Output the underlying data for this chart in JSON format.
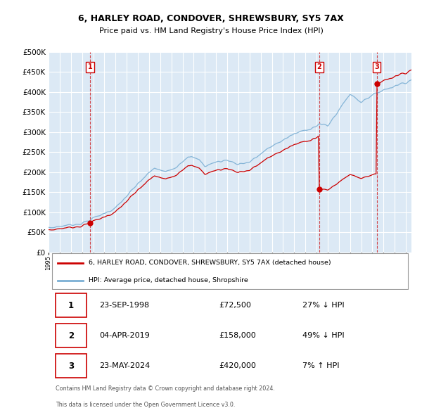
{
  "title": "6, HARLEY ROAD, CONDOVER, SHREWSBURY, SY5 7AX",
  "subtitle": "Price paid vs. HM Land Registry's House Price Index (HPI)",
  "bg_color": "#ffffff",
  "plot_bg_color": "#dce9f5",
  "grid_color": "#ffffff",
  "hpi_color": "#7bafd4",
  "price_color": "#cc0000",
  "transactions": [
    {
      "num": 1,
      "date_str": "23-SEP-1998",
      "year": 1998.73,
      "price": 72500,
      "pct": "27%",
      "dir": "↓"
    },
    {
      "num": 2,
      "date_str": "04-APR-2019",
      "year": 2019.25,
      "price": 158000,
      "pct": "49%",
      "dir": "↓"
    },
    {
      "num": 3,
      "date_str": "23-MAY-2024",
      "year": 2024.39,
      "price": 420000,
      "pct": "7%",
      "dir": "↑"
    }
  ],
  "legend_line1": "6, HARLEY ROAD, CONDOVER, SHREWSBURY, SY5 7AX (detached house)",
  "legend_line2": "HPI: Average price, detached house, Shropshire",
  "footer1": "Contains HM Land Registry data © Crown copyright and database right 2024.",
  "footer2": "This data is licensed under the Open Government Licence v3.0.",
  "table_rows": [
    [
      "1",
      "23-SEP-1998",
      "£72,500",
      "27% ↓ HPI"
    ],
    [
      "2",
      "04-APR-2019",
      "£158,000",
      "49% ↓ HPI"
    ],
    [
      "3",
      "23-MAY-2024",
      "£420,000",
      "7% ↑ HPI"
    ]
  ],
  "xmin": 1995.0,
  "xmax": 2027.5,
  "ymin": 0,
  "ymax": 500000,
  "yticks": [
    0,
    50000,
    100000,
    150000,
    200000,
    250000,
    300000,
    350000,
    400000,
    450000,
    500000
  ]
}
